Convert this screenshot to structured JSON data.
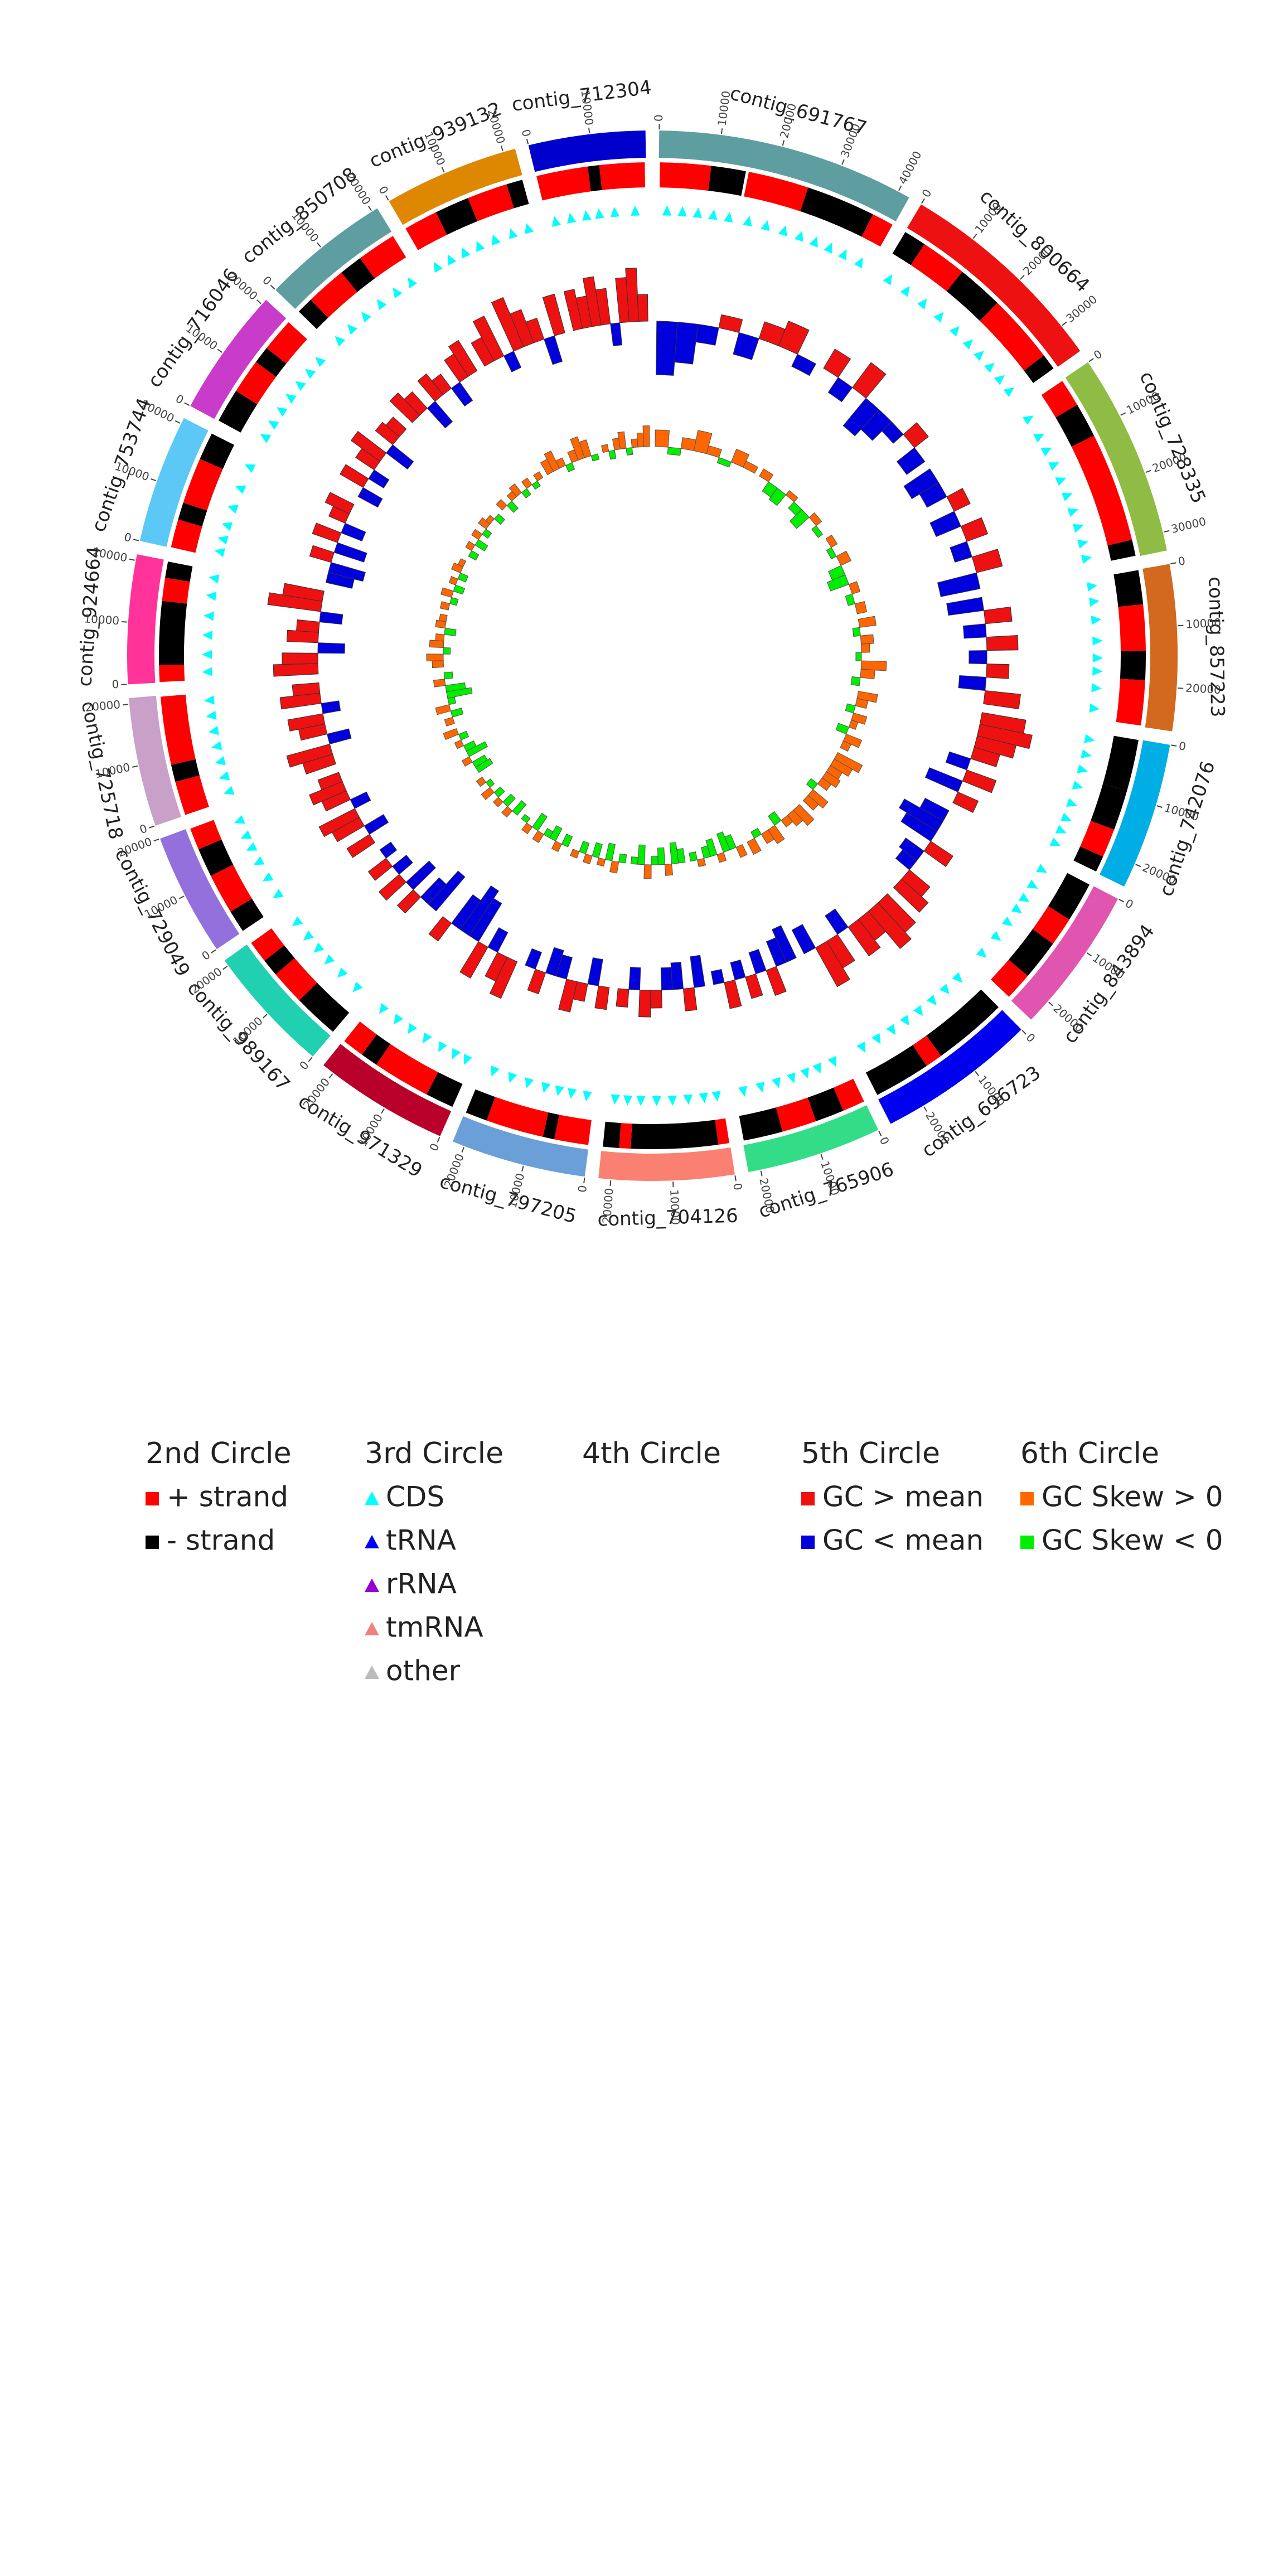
{
  "chart_data": {
    "type": "circos",
    "contigs": [
      {
        "name": "contig_691767",
        "color": "#5f9ea0",
        "length": 42000,
        "ticks": [
          0,
          10000,
          20000,
          30000,
          40000
        ],
        "features": [
          [
            200,
            9000,
            1
          ],
          [
            9000,
            15000,
            -1
          ],
          [
            15500,
            26000,
            1
          ],
          [
            26000,
            38000,
            -1
          ],
          [
            38000,
            41800,
            1
          ]
        ],
        "gc": [
          -0.12,
          -0.09,
          -0.04,
          0.03,
          -0.05,
          0.04,
          0.06,
          -0.03
        ],
        "skew": [
          0.12,
          -0.05,
          0.08,
          0.15,
          0.06,
          -0.04,
          0.1,
          0.05
        ]
      },
      {
        "name": "contig_800664",
        "color": "#ee1111",
        "length": 35000,
        "ticks": [
          0,
          10000,
          20000,
          30000
        ],
        "features": [
          [
            100,
            4000,
            -1
          ],
          [
            4000,
            12000,
            1
          ],
          [
            12000,
            20000,
            -1
          ],
          [
            20000,
            32000,
            1
          ],
          [
            32000,
            34800,
            -1
          ]
        ],
        "gc": [
          0.05,
          -0.04,
          0.07,
          -0.08,
          -0.06,
          -0.03,
          0.04,
          -0.05
        ],
        "skew": [
          0.06,
          -0.08,
          -0.1,
          0.04,
          -0.06,
          -0.12,
          0.05,
          -0.04
        ]
      },
      {
        "name": "contig_728335",
        "color": "#8fbc45",
        "length": 33000,
        "ticks": [
          0,
          10000,
          20000,
          30000
        ],
        "features": [
          [
            200,
            5000,
            1
          ],
          [
            5000,
            11000,
            -1
          ],
          [
            11000,
            30000,
            1
          ],
          [
            30000,
            32800,
            -1
          ]
        ],
        "gc": [
          -0.07,
          -0.05,
          0.04,
          -0.06,
          0.05,
          -0.04,
          0.06,
          -0.09
        ],
        "skew": [
          0.05,
          -0.04,
          0.08,
          -0.1,
          -0.14,
          0.06,
          -0.05,
          0.07
        ]
      },
      {
        "name": "contig_857223",
        "color": "#d2691e",
        "length": 27000,
        "ticks": [
          0,
          10000,
          20000
        ],
        "features": [
          [
            100,
            6000,
            -1
          ],
          [
            6000,
            14000,
            1
          ],
          [
            14000,
            19000,
            -1
          ],
          [
            19000,
            26800,
            1
          ]
        ],
        "gc": [
          -0.08,
          0.06,
          -0.05,
          0.07,
          -0.04,
          0.05,
          -0.06,
          0.08
        ],
        "skew": [
          0.12,
          -0.05,
          0.09,
          0.06,
          -0.04,
          0.18,
          0.1,
          -0.06
        ]
      },
      {
        "name": "contig_742076",
        "color": "#00aee6",
        "length": 24000,
        "ticks": [
          0,
          10000,
          20000
        ],
        "features": [
          [
            100,
            9000,
            -1
          ],
          [
            9000,
            16000,
            -1
          ],
          [
            16000,
            21000,
            1
          ],
          [
            21000,
            23800,
            -1
          ]
        ],
        "gc": [
          0.1,
          0.12,
          0.09,
          0.06,
          -0.05,
          0.07,
          -0.08,
          0.05
        ],
        "skew": [
          0.14,
          0.08,
          -0.06,
          0.1,
          0.05,
          -0.08,
          0.12,
          0.06
        ]
      },
      {
        "name": "contig_843894",
        "color": "#e055b0",
        "length": 24000,
        "ticks": [
          0,
          10000,
          20000
        ],
        "features": [
          [
            100,
            7000,
            -1
          ],
          [
            7000,
            12000,
            1
          ],
          [
            12000,
            19000,
            -1
          ],
          [
            19000,
            23800,
            1
          ]
        ],
        "gc": [
          -0.06,
          -0.1,
          -0.08,
          0.06,
          -0.05,
          -0.04,
          0.06,
          0.08
        ],
        "skew": [
          0.2,
          0.15,
          0.1,
          0.12,
          0.08,
          -0.06,
          0.14,
          0.1
        ]
      },
      {
        "name": "contig_696723",
        "color": "#0000ee",
        "length": 26000,
        "ticks": [
          0,
          10000,
          20000
        ],
        "features": [
          [
            100,
            13000,
            -1
          ],
          [
            13000,
            16000,
            1
          ],
          [
            16000,
            25800,
            -1
          ]
        ],
        "gc": [
          0.09,
          0.11,
          0.06,
          0.08,
          -0.05,
          0.07,
          0.1,
          -0.06
        ],
        "skew": [
          0.15,
          0.1,
          0.06,
          -0.08,
          0.12,
          0.08,
          -0.05,
          0.1
        ]
      },
      {
        "name": "contig_765906",
        "color": "#33dd88",
        "length": 22000,
        "ticks": [
          0,
          10000,
          20000
        ],
        "features": [
          [
            100,
            4000,
            1
          ],
          [
            4000,
            9000,
            -1
          ],
          [
            9000,
            15000,
            1
          ],
          [
            15000,
            21800,
            -1
          ]
        ],
        "gc": [
          -0.08,
          -0.06,
          0.06,
          -0.05,
          0.05,
          -0.04,
          0.06,
          -0.03
        ],
        "skew": [
          0.08,
          -0.1,
          -0.14,
          0.06,
          -0.12,
          -0.08,
          0.05,
          -0.06
        ]
      },
      {
        "name": "contig_704126",
        "color": "#fa8072",
        "length": 22000,
        "ticks": [
          0,
          10000,
          20000
        ],
        "features": [
          [
            100,
            2000,
            1
          ],
          [
            2000,
            17000,
            -1
          ],
          [
            17000,
            19000,
            1
          ],
          [
            19000,
            21800,
            -1
          ]
        ],
        "gc": [
          -0.07,
          0.05,
          -0.06,
          -0.05,
          0.04,
          0.06,
          -0.05,
          0.04
        ],
        "skew": [
          -0.1,
          -0.15,
          0.08,
          -0.12,
          -0.06,
          0.1,
          -0.14,
          -0.05
        ]
      },
      {
        "name": "contig_797205",
        "color": "#6a9fd8",
        "length": 22000,
        "ticks": [
          0,
          10000,
          20000
        ],
        "features": [
          [
            100,
            6000,
            1
          ],
          [
            6000,
            8000,
            -1
          ],
          [
            8000,
            18000,
            1
          ],
          [
            18000,
            21800,
            -1
          ]
        ],
        "gc": [
          0.05,
          -0.06,
          0.04,
          0.07,
          -0.05,
          -0.06,
          0.05,
          -0.04
        ],
        "skew": [
          -0.06,
          0.08,
          -0.12,
          0.05,
          -0.1,
          0.06,
          -0.08,
          0.05
        ]
      },
      {
        "name": "contig_971329",
        "color": "#b8002a",
        "length": 22000,
        "ticks": [
          0,
          10000,
          20000
        ],
        "features": [
          [
            100,
            5000,
            -1
          ],
          [
            5000,
            15000,
            1
          ],
          [
            15000,
            18000,
            -1
          ],
          [
            18000,
            21800,
            1
          ]
        ],
        "gc": [
          0.09,
          0.06,
          -0.05,
          0.08,
          -0.1,
          -0.12,
          -0.08,
          0.05
        ],
        "skew": [
          -0.08,
          0.06,
          -0.1,
          -0.05,
          0.07,
          -0.12,
          0.06,
          -0.04
        ]
      },
      {
        "name": "contig_989167",
        "color": "#20d0b0",
        "length": 21000,
        "ticks": [
          0,
          10000,
          20000
        ],
        "features": [
          [
            100,
            8000,
            -1
          ],
          [
            8000,
            14000,
            1
          ],
          [
            14000,
            17000,
            -1
          ],
          [
            17000,
            20800,
            1
          ]
        ],
        "gc": [
          -0.1,
          -0.06,
          0.05,
          -0.07,
          0.06,
          -0.04,
          0.05,
          -0.03
        ],
        "skew": [
          -0.1,
          0.06,
          -0.08,
          0.05,
          -0.06,
          0.08,
          -0.04,
          0.05
        ]
      },
      {
        "name": "contig_729049",
        "color": "#9370db",
        "length": 20000,
        "ticks": [
          0,
          10000,
          20000
        ],
        "features": [
          [
            100,
            4000,
            -1
          ],
          [
            4000,
            11000,
            1
          ],
          [
            11000,
            16000,
            -1
          ],
          [
            16000,
            19800,
            1
          ]
        ],
        "gc": [
          0.06,
          -0.05,
          0.07,
          0.09,
          -0.04,
          0.06,
          0.08,
          0.05
        ],
        "skew": [
          -0.12,
          -0.1,
          0.06,
          -0.15,
          -0.08,
          0.05,
          -0.06,
          0.1
        ]
      },
      {
        "name": "contig_725718",
        "color": "#c8a0c8",
        "length": 21000,
        "ticks": [
          0,
          10000,
          20000
        ],
        "features": [
          [
            100,
            6000,
            1
          ],
          [
            6000,
            9000,
            -1
          ],
          [
            9000,
            20800,
            1
          ]
        ],
        "gc": [
          0.07,
          0.1,
          -0.05,
          0.06,
          0.08,
          -0.04,
          0.09,
          0.06
        ],
        "skew": [
          0.06,
          -0.08,
          0.1,
          -0.05,
          -0.18,
          -0.14,
          0.08,
          -0.06
        ]
      },
      {
        "name": "contig_924664",
        "color": "#ff3399",
        "length": 21000,
        "ticks": [
          0,
          10000,
          20000
        ],
        "features": [
          [
            100,
            3000,
            1
          ],
          [
            3000,
            14000,
            -1
          ],
          [
            14000,
            18000,
            1
          ],
          [
            18000,
            20800,
            -1
          ]
        ],
        "gc": [
          0.1,
          0.08,
          -0.06,
          0.07,
          0.05,
          -0.05,
          0.12,
          0.09
        ],
        "skew": [
          0.08,
          0.12,
          -0.05,
          0.1,
          0.06,
          -0.08,
          0.07,
          0.05
        ]
      },
      {
        "name": "contig_753744",
        "color": "#5bc8f5",
        "length": 21000,
        "ticks": [
          0,
          10000,
          20000
        ],
        "features": [
          [
            100,
            5000,
            1
          ],
          [
            5000,
            8000,
            -1
          ],
          [
            8000,
            16000,
            1
          ],
          [
            16000,
            20800,
            -1
          ]
        ],
        "gc": [
          -0.06,
          -0.08,
          0.05,
          -0.07,
          0.06,
          -0.05,
          0.04,
          0.06
        ],
        "skew": [
          0.06,
          -0.05,
          0.08,
          -0.07,
          0.05,
          -0.06,
          0.07,
          0.04
        ]
      },
      {
        "name": "contig_716046",
        "color": "#c93cc9",
        "length": 21000,
        "ticks": [
          0,
          10000,
          20000
        ],
        "features": [
          [
            100,
            6000,
            -1
          ],
          [
            6000,
            12000,
            1
          ],
          [
            12000,
            15000,
            -1
          ],
          [
            15000,
            20800,
            1
          ]
        ],
        "gc": [
          -0.05,
          0.06,
          -0.04,
          0.05,
          0.08,
          -0.06,
          0.05,
          0.04
        ],
        "skew": [
          -0.06,
          0.05,
          -0.08,
          0.06,
          -0.05,
          0.07,
          0.04,
          -0.06
        ]
      },
      {
        "name": "contig_850708",
        "color": "#5f9ea0",
        "length": 21000,
        "ticks": [
          0,
          10000,
          20000
        ],
        "features": [
          [
            100,
            3000,
            -1
          ],
          [
            3000,
            10000,
            1
          ],
          [
            10000,
            14000,
            -1
          ],
          [
            14000,
            20800,
            1
          ]
        ],
        "gc": [
          0.07,
          0.05,
          -0.06,
          0.06,
          0.04,
          -0.05,
          0.06,
          0.08
        ],
        "skew": [
          0.06,
          -0.07,
          0.05,
          0.08,
          -0.05,
          0.06,
          -0.04,
          0.05
        ]
      },
      {
        "name": "contig_939132",
        "color": "#dd8800",
        "length": 22000,
        "ticks": [
          0,
          10000,
          20000
        ],
        "features": [
          [
            100,
            6000,
            1
          ],
          [
            6000,
            12000,
            -1
          ],
          [
            12000,
            19000,
            1
          ],
          [
            19000,
            21800,
            -1
          ]
        ],
        "gc": [
          0.06,
          0.1,
          -0.04,
          0.12,
          0.08,
          0.05,
          -0.06,
          0.09
        ],
        "skew": [
          0.1,
          0.14,
          0.06,
          -0.05,
          0.08,
          0.16,
          0.12,
          -0.04
        ]
      },
      {
        "name": "contig_712304",
        "color": "#0000cc",
        "length": 19000,
        "ticks": [
          0,
          10000
        ],
        "features": [
          [
            100,
            9000,
            1
          ],
          [
            9000,
            11000,
            -1
          ],
          [
            11000,
            18800,
            1
          ]
        ],
        "gc": [
          0.09,
          0.07,
          0.11,
          0.08,
          -0.05,
          0.1,
          0.12,
          0.06
        ],
        "skew": [
          0.05,
          -0.06,
          0.08,
          0.12,
          -0.05,
          0.06,
          0.1,
          0.15
        ]
      }
    ],
    "legend": [
      {
        "title": "2nd Circle",
        "items": [
          {
            "label": "+ strand",
            "color": "#ff0000",
            "shape": "square"
          },
          {
            "label": "- strand",
            "color": "#000000",
            "shape": "square"
          }
        ]
      },
      {
        "title": "3rd Circle",
        "items": [
          {
            "label": "CDS",
            "color": "#00ffff",
            "shape": "triangle"
          },
          {
            "label": "tRNA",
            "color": "#0000ff",
            "shape": "triangle"
          },
          {
            "label": "rRNA",
            "color": "#9400d3",
            "shape": "triangle"
          },
          {
            "label": "tmRNA",
            "color": "#f08080",
            "shape": "triangle"
          },
          {
            "label": "other",
            "color": "#bbbbbb",
            "shape": "triangle"
          }
        ]
      },
      {
        "title": "4th Circle",
        "items": []
      },
      {
        "title": "5th Circle",
        "items": [
          {
            "label": "GC > mean",
            "color": "#ee1111",
            "shape": "square"
          },
          {
            "label": "GC < mean",
            "color": "#0000dd",
            "shape": "square"
          }
        ]
      },
      {
        "title": "6th Circle",
        "items": [
          {
            "label": "GC Skew > 0",
            "color": "#ff6600",
            "shape": "square"
          },
          {
            "label": "GC Skew < 0",
            "color": "#00ee00",
            "shape": "square"
          }
        ]
      }
    ]
  }
}
